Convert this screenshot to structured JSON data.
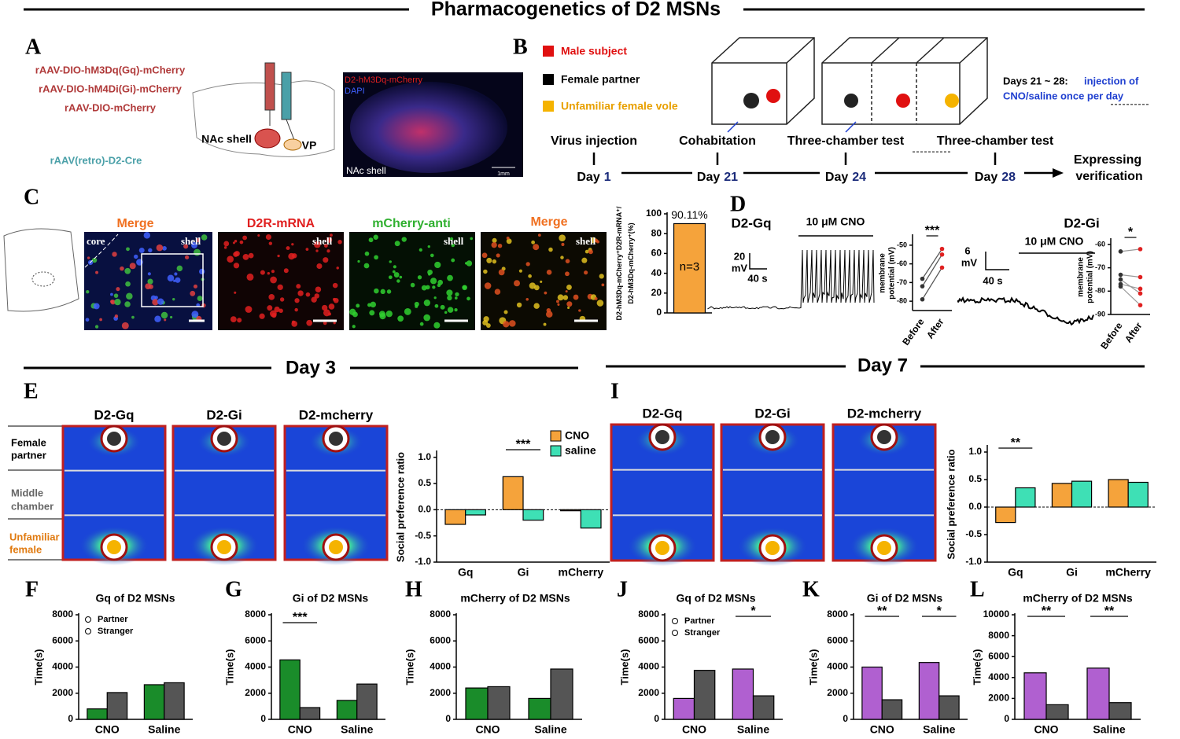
{
  "header": {
    "title": "Pharmacogenetics of D2 MSNs"
  },
  "panel_letters": [
    "A",
    "B",
    "C",
    "D",
    "E",
    "F",
    "G",
    "H",
    "I",
    "J",
    "K",
    "L"
  ],
  "panel_a": {
    "viruses": [
      "rAAV-DIO-hM3Dq(Gq)-mCherry",
      "rAAV-DIO-hM4Di(Gi)-mCherry",
      "rAAV-DIO-mCherry"
    ],
    "retro": "rAAV(retro)-D2-Cre",
    "regions": [
      "NAc shell",
      "VP"
    ],
    "image_labels": [
      "D2-hM3Dq-mCherry",
      "DAPI",
      "NAc shell",
      "1mm"
    ]
  },
  "panel_b": {
    "legend": [
      "Male subject",
      "Female partner",
      "Unfamiliar female vole"
    ],
    "note": [
      "Days 21 ~ 28:",
      "injection of",
      "CNO/saline once per day"
    ],
    "timeline": [
      {
        "event": "Virus injection",
        "day": "Day",
        "number": "1"
      },
      {
        "event": "Cohabitation",
        "day": "Day",
        "number": "21"
      },
      {
        "event": "Three-chamber test",
        "day": "Day",
        "number": "24"
      },
      {
        "event": "Three-chamber test",
        "day": "Day",
        "number": "28"
      }
    ],
    "end": [
      "Expressing",
      "verification"
    ]
  },
  "panel_c": {
    "image_titles": [
      "Merge",
      "D2R-mRNA",
      "mCherry-anti",
      "Merge"
    ],
    "region_labels": [
      "core",
      "shell",
      "shell",
      "shell",
      "shell"
    ]
  },
  "panel_d": {
    "titles": [
      "D2-Gq",
      "D2-Gi"
    ],
    "drug": [
      "10 μM CNO",
      "10 μM CNO"
    ],
    "scales": [
      {
        "y": "20",
        "unit": "mV",
        "x": "40 s"
      },
      {
        "y": "6",
        "unit": "mV",
        "x": "40 s"
      }
    ]
  },
  "days": [
    "Day 3",
    "Day 7"
  ],
  "heatmaps": {
    "titles": [
      "D2-Gq",
      "D2-Gi",
      "D2-mcherry",
      "D2-Gq",
      "D2-Gi",
      "D2-mcherry"
    ],
    "rows": [
      [
        "Female",
        "partner"
      ],
      [
        "Middle",
        "chamber"
      ],
      [
        "Unfamiliar",
        "female"
      ]
    ]
  },
  "chart_data": [
    {
      "type": "bar",
      "ylabel": [
        "D2-hM3Dq-mCherry⁺D2R-mRNA⁺/",
        "D2-hM3Dq-mCherry⁺(%)"
      ],
      "categories": [
        null
      ],
      "values": [
        90.11
      ],
      "value_labels": [
        "90.11%"
      ],
      "color": "#f5a33b",
      "ylim": [
        0,
        100
      ],
      "yticks": [
        0,
        20,
        40,
        60,
        80,
        100
      ],
      "annotations": [
        "n=3"
      ]
    },
    {
      "type": "line",
      "ylabel": [
        "membrane",
        "potential (mV)"
      ],
      "categories": [
        "Before",
        "After"
      ],
      "point_colors": [
        "#333333",
        "#e02020"
      ],
      "ylim": [
        -85,
        -45
      ],
      "yticks": [
        -80,
        -70,
        -60,
        -50
      ],
      "annotations": [
        "***"
      ],
      "series": [
        {
          "values": [
            -68,
            -52
          ],
          "color": "#555555"
        },
        {
          "values": [
            -72,
            -55
          ],
          "color": "#555555"
        },
        {
          "values": [
            -79,
            -62
          ],
          "color": "#555555"
        }
      ]
    },
    {
      "type": "line",
      "ylabel": [
        "membrane",
        "potential (mV)"
      ],
      "categories": [
        "Before",
        "After"
      ],
      "point_colors": [
        "#333333",
        "#e02020"
      ],
      "ylim": [
        -90,
        -58
      ],
      "yticks": [
        -90,
        -80,
        -70,
        -60
      ],
      "annotations": [
        "*"
      ],
      "series": [
        {
          "values": [
            -63,
            -62
          ],
          "color": "#999999"
        },
        {
          "values": [
            -73,
            -74
          ],
          "color": "#999999"
        },
        {
          "values": [
            -75,
            -81
          ],
          "color": "#999999"
        },
        {
          "values": [
            -77,
            -79
          ],
          "color": "#999999"
        },
        {
          "values": [
            -78,
            -86
          ],
          "color": "#999999"
        }
      ]
    },
    {
      "type": "bar",
      "ylabel": "Social preference ratio",
      "categories": [
        "Gq",
        "Gi",
        "mCherry"
      ],
      "ylim": [
        -1,
        1.1
      ],
      "yticks": [
        {
          "value": -1,
          "label": "-1.0"
        },
        {
          "value": -0.5,
          "label": "-0.5"
        },
        {
          "value": 0,
          "label": "0.0"
        },
        {
          "value": 0.5,
          "label": "0.5"
        },
        {
          "value": 1,
          "label": "1.0"
        }
      ],
      "series": [
        {
          "name": "CNO",
          "color": "#f5a33b",
          "values": [
            -0.28,
            0.63,
            -0.02
          ]
        },
        {
          "name": "saline",
          "color": "#3ee0b5",
          "values": [
            -0.1,
            -0.2,
            -0.35
          ]
        }
      ],
      "legend": "upper right",
      "annotations": [
        "***"
      ]
    },
    {
      "type": "bar",
      "ylabel": "Social preference ratio",
      "categories": [
        "Gq",
        "Gi",
        "mCherry"
      ],
      "ylim": [
        -1,
        1.1
      ],
      "yticks": [
        {
          "value": -1,
          "label": "-1.0"
        },
        {
          "value": -0.5,
          "label": "-0.5"
        },
        {
          "value": 0,
          "label": "0.0"
        },
        {
          "value": 0.5,
          "label": "0.5"
        },
        {
          "value": 1,
          "label": "1.0"
        }
      ],
      "series": [
        {
          "color": "#f5a33b",
          "values": [
            -0.28,
            0.43,
            0.5
          ]
        },
        {
          "color": "#3ee0b5",
          "values": [
            0.35,
            0.47,
            0.45
          ]
        }
      ],
      "annotations": [
        "**"
      ]
    },
    {
      "type": "bar",
      "title": "Gq of D2 MSNs",
      "ylabel": "Time(s)",
      "categories": [
        "CNO",
        "Saline"
      ],
      "ylim": [
        0,
        8000
      ],
      "yticks": [
        0,
        2000,
        4000,
        6000,
        8000
      ],
      "series": [
        {
          "name": "Partner",
          "color": "#1a8c2a",
          "values": [
            800,
            2650
          ]
        },
        {
          "name": "Stranger",
          "color": "#555555",
          "values": [
            2050,
            2800
          ]
        }
      ],
      "legend": "upper left"
    },
    {
      "type": "bar",
      "title": "Gi of D2 MSNs",
      "ylabel": "Time(s)",
      "categories": [
        "CNO",
        "Saline"
      ],
      "ylim": [
        0,
        8000
      ],
      "yticks": [
        0,
        2000,
        4000,
        6000,
        8000
      ],
      "series": [
        {
          "color": "#1a8c2a",
          "values": [
            4550,
            1450
          ]
        },
        {
          "color": "#555555",
          "values": [
            900,
            2700
          ]
        }
      ],
      "annotations": [
        "***"
      ]
    },
    {
      "type": "bar",
      "title": "mCherry of D2 MSNs",
      "ylabel": "Time(s)",
      "categories": [
        "CNO",
        "Saline"
      ],
      "ylim": [
        0,
        8000
      ],
      "yticks": [
        0,
        2000,
        4000,
        6000,
        8000
      ],
      "series": [
        {
          "color": "#1a8c2a",
          "values": [
            2400,
            1600
          ]
        },
        {
          "color": "#555555",
          "values": [
            2500,
            3850
          ]
        }
      ]
    },
    {
      "type": "bar",
      "title": "Gq of D2 MSNs",
      "ylabel": "Time(s)",
      "categories": [
        "CNO",
        "Saline"
      ],
      "ylim": [
        0,
        8000
      ],
      "yticks": [
        0,
        2000,
        4000,
        6000,
        8000
      ],
      "series": [
        {
          "name": "Partner",
          "color": "#b060d0",
          "values": [
            1600,
            3850
          ]
        },
        {
          "name": "Stranger",
          "color": "#555555",
          "values": [
            3750,
            1800
          ]
        }
      ],
      "legend": "upper left",
      "annotations": [
        "*"
      ]
    },
    {
      "type": "bar",
      "title": "Gi of D2 MSNs",
      "ylabel": "Time(s)",
      "categories": [
        "CNO",
        "Saline"
      ],
      "ylim": [
        0,
        8000
      ],
      "yticks": [
        0,
        2000,
        4000,
        6000,
        8000
      ],
      "series": [
        {
          "color": "#b060d0",
          "values": [
            4000,
            4350
          ]
        },
        {
          "color": "#555555",
          "values": [
            1500,
            1800
          ]
        }
      ],
      "annotations": [
        "**",
        "*"
      ]
    },
    {
      "type": "bar",
      "title": "mCherry of D2 MSNs",
      "ylabel": "Time(s)",
      "categories": [
        "CNO",
        "Saline"
      ],
      "ylim": [
        0,
        10000
      ],
      "yticks": [
        0,
        2000,
        4000,
        6000,
        8000,
        10000
      ],
      "series": [
        {
          "color": "#b060d0",
          "values": [
            4450,
            4900
          ]
        },
        {
          "color": "#555555",
          "values": [
            1400,
            1600
          ]
        }
      ],
      "annotations": [
        "**",
        "**"
      ]
    }
  ]
}
